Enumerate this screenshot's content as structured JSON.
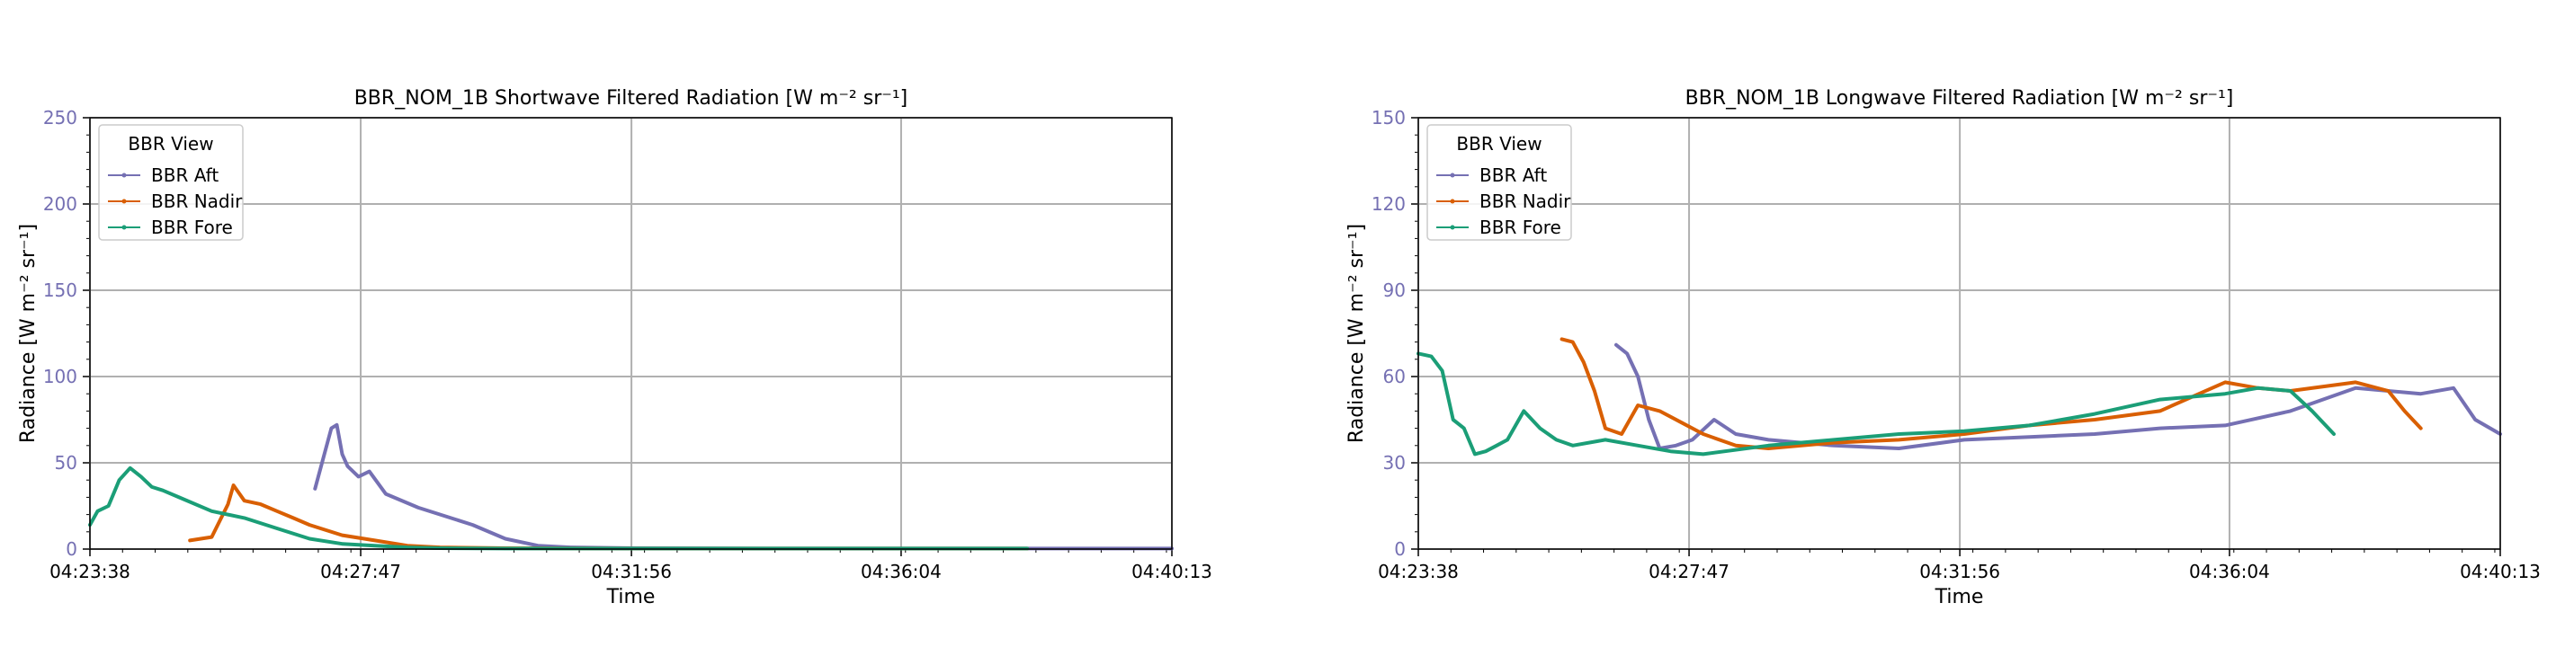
{
  "chart_data": [
    {
      "type": "line",
      "title": "BBR_NOM_1B Shortwave Filtered Radiation [W m⁻² sr⁻¹]",
      "xlabel": "Time",
      "ylabel": "Radiance [W m⁻² sr⁻¹]",
      "xlim": [
        "04:23:38",
        "04:40:13"
      ],
      "xticks": [
        "04:23:38",
        "04:27:47",
        "04:31:56",
        "04:36:04",
        "04:40:13"
      ],
      "ylim": [
        0,
        250
      ],
      "yticks": [
        0,
        50,
        100,
        150,
        200,
        250
      ],
      "grid": true,
      "legend": {
        "title": "BBR View",
        "placement": "top-left"
      },
      "series": [
        {
          "name": "BBR Aft",
          "color": "#7570b3",
          "x": [
            "04:27:05",
            "04:27:20",
            "04:27:25",
            "04:27:30",
            "04:27:35",
            "04:27:45",
            "04:27:55",
            "04:28:10",
            "04:28:40",
            "04:29:30",
            "04:30:00",
            "04:30:30",
            "04:31:00",
            "04:32:00",
            "04:34:00",
            "04:36:00",
            "04:38:00",
            "04:39:00",
            "04:40:13"
          ],
          "y": [
            35,
            70,
            72,
            55,
            48,
            42,
            45,
            32,
            24,
            14,
            6,
            2,
            1,
            0.5,
            0.3,
            0.3,
            0.3,
            0.3,
            0.3
          ]
        },
        {
          "name": "BBR Nadir",
          "color": "#d95f02",
          "x": [
            "04:25:10",
            "04:25:30",
            "04:25:45",
            "04:25:50",
            "04:26:00",
            "04:26:15",
            "04:26:30",
            "04:26:45",
            "04:27:00",
            "04:27:30",
            "04:28:00",
            "04:28:30",
            "04:29:00",
            "04:30:00",
            "04:32:00",
            "04:34:00",
            "04:37:00",
            "04:38:00"
          ],
          "y": [
            5,
            7,
            26,
            37,
            28,
            26,
            22,
            18,
            14,
            8,
            5,
            2,
            1,
            0.5,
            0.3,
            0.3,
            0.3,
            0.3
          ]
        },
        {
          "name": "BBR Fore",
          "color": "#1b9e77",
          "x": [
            "04:23:38",
            "04:23:45",
            "04:23:55",
            "04:24:05",
            "04:24:15",
            "04:24:25",
            "04:24:35",
            "04:24:45",
            "04:25:00",
            "04:25:30",
            "04:26:00",
            "04:26:30",
            "04:27:00",
            "04:27:30",
            "04:28:00",
            "04:28:30",
            "04:29:00",
            "04:30:00",
            "04:32:00",
            "04:35:00",
            "04:38:00"
          ],
          "y": [
            14,
            22,
            25,
            40,
            47,
            42,
            36,
            34,
            30,
            22,
            18,
            12,
            6,
            3,
            2,
            1,
            0.5,
            0.3,
            0.3,
            0.3,
            0.3
          ]
        }
      ]
    },
    {
      "type": "line",
      "title": "BBR_NOM_1B Longwave Filtered Radiation [W m⁻² sr⁻¹]",
      "xlabel": "Time",
      "ylabel": "Radiance [W m⁻² sr⁻¹]",
      "xlim": [
        "04:23:38",
        "04:40:13"
      ],
      "xticks": [
        "04:23:38",
        "04:27:47",
        "04:31:56",
        "04:36:04",
        "04:40:13"
      ],
      "ylim": [
        0,
        150
      ],
      "yticks": [
        0,
        30,
        60,
        90,
        120,
        150
      ],
      "grid": true,
      "legend": {
        "title": "BBR View",
        "placement": "top-left"
      },
      "series": [
        {
          "name": "BBR Aft",
          "color": "#7570b3",
          "x": [
            "04:26:40",
            "04:26:50",
            "04:27:00",
            "04:27:10",
            "04:27:20",
            "04:27:35",
            "04:27:50",
            "04:28:10",
            "04:28:30",
            "04:29:00",
            "04:30:00",
            "04:31:00",
            "04:32:00",
            "04:33:00",
            "04:34:00",
            "04:35:00",
            "04:36:00",
            "04:37:00",
            "04:38:00",
            "04:39:00",
            "04:39:30",
            "04:39:50",
            "04:40:13"
          ],
          "y": [
            71,
            68,
            60,
            45,
            35,
            36,
            38,
            45,
            40,
            38,
            36,
            35,
            38,
            39,
            40,
            42,
            43,
            48,
            56,
            54,
            56,
            45,
            40
          ]
        },
        {
          "name": "BBR Nadir",
          "color": "#d95f02",
          "x": [
            "04:25:50",
            "04:26:00",
            "04:26:10",
            "04:26:20",
            "04:26:30",
            "04:26:45",
            "04:27:00",
            "04:27:20",
            "04:27:40",
            "04:28:00",
            "04:28:30",
            "04:29:00",
            "04:30:00",
            "04:31:00",
            "04:32:00",
            "04:33:00",
            "04:34:00",
            "04:35:00",
            "04:36:00",
            "04:36:30",
            "04:37:00",
            "04:38:00",
            "04:38:30",
            "04:38:45",
            "04:39:00"
          ],
          "y": [
            73,
            72,
            65,
            55,
            42,
            40,
            50,
            48,
            44,
            40,
            36,
            35,
            37,
            38,
            40,
            43,
            45,
            48,
            58,
            56,
            55,
            58,
            55,
            48,
            42
          ]
        },
        {
          "name": "BBR Fore",
          "color": "#1b9e77",
          "x": [
            "04:23:38",
            "04:23:50",
            "04:24:00",
            "04:24:10",
            "04:24:20",
            "04:24:30",
            "04:24:40",
            "04:24:50",
            "04:25:00",
            "04:25:15",
            "04:25:30",
            "04:25:45",
            "04:26:00",
            "04:26:30",
            "04:27:00",
            "04:27:30",
            "04:28:00",
            "04:29:00",
            "04:30:00",
            "04:31:00",
            "04:32:00",
            "04:33:00",
            "04:34:00",
            "04:35:00",
            "04:36:00",
            "04:36:30",
            "04:37:00",
            "04:37:20",
            "04:37:40"
          ],
          "y": [
            68,
            67,
            62,
            45,
            42,
            33,
            34,
            36,
            38,
            48,
            42,
            38,
            36,
            38,
            36,
            34,
            33,
            36,
            38,
            40,
            41,
            43,
            47,
            52,
            54,
            56,
            55,
            48,
            40
          ]
        }
      ]
    }
  ],
  "colors": {
    "aft": "#7570b3",
    "nadir": "#d95f02",
    "fore": "#1b9e77",
    "grid": "#b0b0b0",
    "tick_label_y": "#7570b3"
  }
}
